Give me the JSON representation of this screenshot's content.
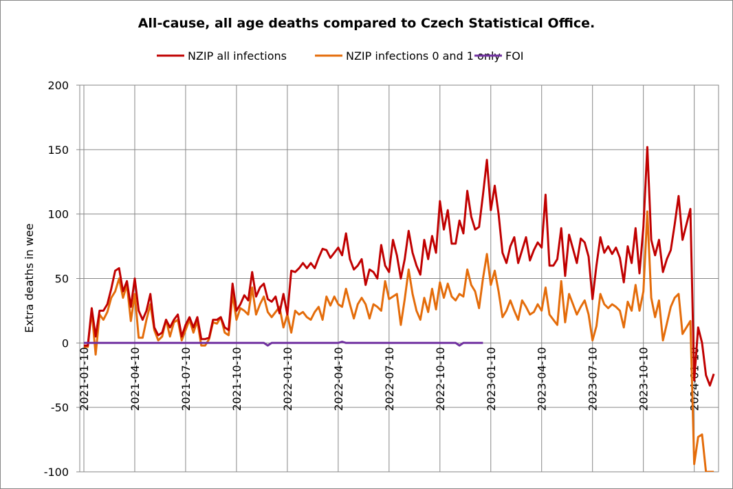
{
  "chart_data": {
    "type": "line",
    "title": "All-cause, all age deaths compared to Czech Statistical Office.",
    "xlabel": "",
    "ylabel": "Extra deaths in wee",
    "ylim": [
      -100,
      200
    ],
    "yticks": [
      "200",
      "150",
      "100",
      "50",
      "0",
      "-50",
      "-100"
    ],
    "ytick_values": [
      200,
      150,
      100,
      50,
      0,
      -50,
      -100
    ],
    "x_start": "2021-01-10",
    "x_interval": "weekly",
    "xticks": [
      "2021-01-10",
      "2021-04-10",
      "2021-07-10",
      "2021-10-10",
      "2022-01-10",
      "2022-04-10",
      "2022-07-10",
      "2022-10-10",
      "2023-01-10",
      "2023-04-10",
      "2023-07-10",
      "2023-10-10",
      "2024-01-10"
    ],
    "xtick_weeks": [
      0,
      13,
      26,
      39,
      52,
      65,
      78,
      91,
      104,
      117,
      130,
      143,
      156
    ],
    "grid": true,
    "legend_position": "top",
    "series": [
      {
        "name": "NZIP all infections",
        "color": "#C00000",
        "values": [
          -2,
          -2,
          27,
          5,
          25,
          25,
          30,
          42,
          56,
          58,
          40,
          48,
          28,
          50,
          25,
          18,
          25,
          38,
          12,
          6,
          8,
          18,
          12,
          18,
          22,
          5,
          14,
          20,
          12,
          20,
          3,
          3,
          4,
          18,
          18,
          20,
          12,
          10,
          46,
          25,
          30,
          37,
          33,
          55,
          36,
          43,
          46,
          34,
          32,
          36,
          23,
          38,
          22,
          56,
          55,
          58,
          62,
          58,
          62,
          58,
          66,
          73,
          72,
          66,
          70,
          74,
          68,
          85,
          65,
          57,
          60,
          65,
          45,
          57,
          55,
          50,
          76,
          60,
          55,
          80,
          68,
          50,
          65,
          87,
          70,
          60,
          53,
          80,
          65,
          83,
          70,
          110,
          88,
          103,
          77,
          77,
          95,
          85,
          118,
          98,
          88,
          90,
          115,
          142,
          103,
          122,
          100,
          70,
          62,
          75,
          82,
          62,
          72,
          82,
          64,
          72,
          78,
          74,
          115,
          60,
          60,
          65,
          89,
          52,
          84,
          73,
          62,
          81,
          78,
          67,
          34,
          60,
          82,
          70,
          75,
          69,
          74,
          66,
          47,
          75,
          62,
          89,
          54,
          90,
          152,
          80,
          68,
          80,
          55,
          65,
          72,
          92,
          114,
          80,
          92,
          104,
          -29,
          12,
          0,
          -25,
          -33,
          -24
        ]
      },
      {
        "name": "NZIP infections 0 and 1 only",
        "color": "#E46C0A",
        "values": [
          -3,
          -3,
          25,
          -9,
          22,
          18,
          24,
          35,
          40,
          50,
          35,
          45,
          17,
          38,
          4,
          4,
          18,
          30,
          10,
          2,
          5,
          18,
          5,
          16,
          18,
          2,
          10,
          18,
          8,
          17,
          -2,
          -2,
          3,
          16,
          15,
          20,
          8,
          6,
          38,
          18,
          27,
          25,
          22,
          43,
          22,
          30,
          36,
          24,
          20,
          24,
          28,
          12,
          22,
          8,
          25,
          22,
          24,
          20,
          18,
          24,
          28,
          18,
          36,
          29,
          36,
          30,
          28,
          42,
          30,
          19,
          30,
          35,
          30,
          19,
          30,
          28,
          25,
          48,
          34,
          36,
          38,
          14,
          34,
          57,
          38,
          25,
          18,
          35,
          24,
          42,
          26,
          47,
          35,
          46,
          36,
          33,
          38,
          36,
          57,
          45,
          40,
          27,
          50,
          69,
          45,
          56,
          40,
          20,
          25,
          33,
          25,
          18,
          33,
          28,
          22,
          24,
          30,
          25,
          43,
          22,
          18,
          14,
          48,
          16,
          38,
          30,
          22,
          28,
          33,
          22,
          2,
          13,
          38,
          30,
          27,
          30,
          28,
          25,
          12,
          32,
          25,
          45,
          25,
          40,
          102,
          35,
          20,
          33,
          2,
          15,
          28,
          35,
          38,
          7,
          12,
          17,
          -94,
          -73,
          -71,
          -100,
          -100,
          -100
        ]
      },
      {
        "name": "FOI",
        "color": "#7030A0",
        "values": [
          0,
          0,
          0,
          0,
          0,
          0,
          0,
          0,
          0,
          0,
          0,
          0,
          0,
          0,
          0,
          0,
          0,
          0,
          0,
          0,
          0,
          0,
          0,
          0,
          0,
          0,
          0,
          0,
          0,
          0,
          0,
          0,
          0,
          0,
          0,
          0,
          0,
          0,
          0,
          0,
          0,
          0,
          0,
          0,
          0,
          0,
          0,
          -2,
          0,
          0,
          0,
          0,
          0,
          0,
          0,
          0,
          0,
          0,
          0,
          0,
          0,
          0,
          0,
          0,
          0,
          0,
          1,
          0,
          0,
          0,
          0,
          0,
          0,
          0,
          0,
          0,
          0,
          0,
          0,
          0,
          0,
          0,
          0,
          0,
          0,
          0,
          0,
          0,
          0,
          0,
          0,
          0,
          0,
          0,
          0,
          0,
          -2,
          0,
          0,
          0,
          0,
          0,
          0
        ]
      }
    ]
  }
}
